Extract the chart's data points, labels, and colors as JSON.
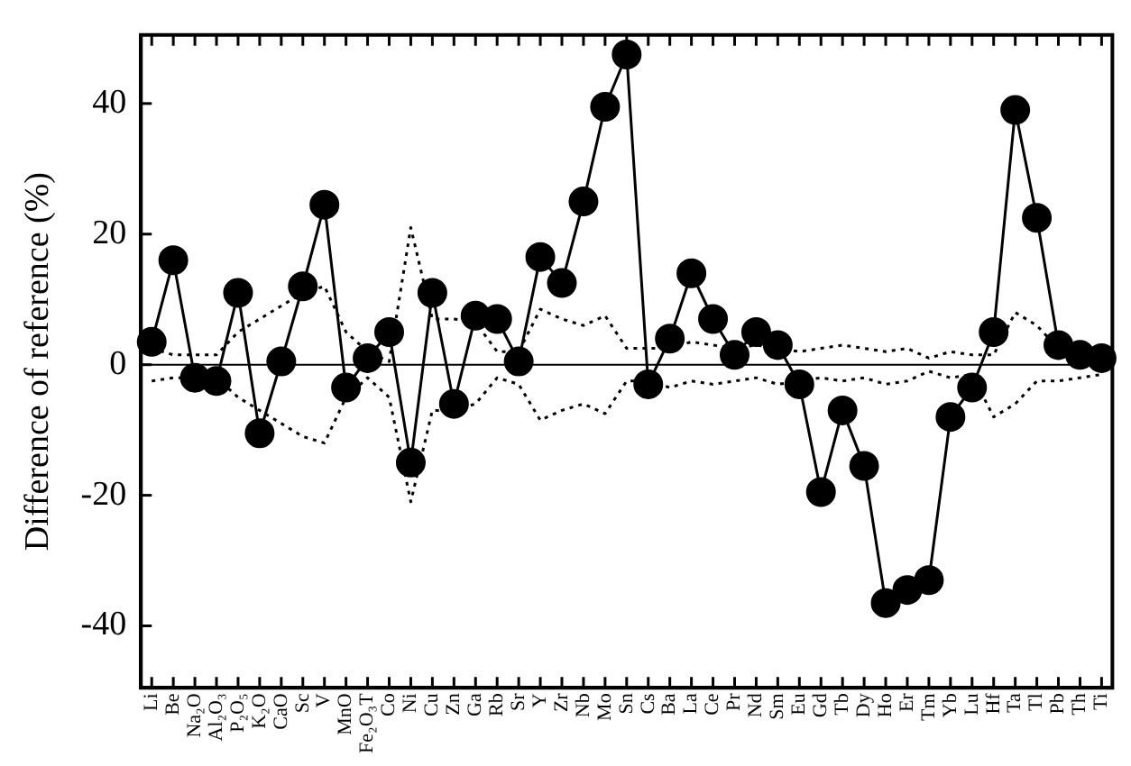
{
  "chart_data": {
    "type": "line",
    "ylabel": "Difference of reference (%)",
    "categories": [
      "Li",
      "Be",
      "Na₂O",
      "Al₂O₃",
      "P₂O₅",
      "K₂O",
      "CaO",
      "Sc",
      "V",
      "MnO",
      "Fe₂O₃T",
      "Co",
      "Ni",
      "Cu",
      "Zn",
      "Ga",
      "Rb",
      "Sr",
      "Y",
      "Zr",
      "Nb",
      "Mo",
      "Sn",
      "Cs",
      "Ba",
      "La",
      "Ce",
      "Pr",
      "Nd",
      "Sm",
      "Eu",
      "Gd",
      "Tb",
      "Dy",
      "Ho",
      "Er",
      "Tm",
      "Yb",
      "Lu",
      "Hf",
      "Ta",
      "Tl",
      "Pb",
      "Th",
      "Ti"
    ],
    "series": [
      {
        "color": "#000000",
        "marker": "circle",
        "line_style": "solid",
        "values": [
          3.5,
          16,
          -2,
          -2.5,
          11,
          -10.5,
          0.5,
          12,
          24.5,
          -3.5,
          1,
          5,
          -15,
          11,
          -6,
          7.5,
          7,
          0.5,
          16.5,
          12.5,
          25,
          39.5,
          47.5,
          -3,
          4,
          14,
          7,
          1.5,
          5,
          3,
          -3,
          -19.5,
          -7,
          -15.5,
          -36.5,
          -34.5,
          -33,
          -8,
          -3.5,
          5,
          39,
          22.5,
          3,
          1.5,
          1
        ]
      },
      {
        "color": "#000000",
        "marker": "none",
        "line_style": "dotted",
        "values": [
          2.5,
          1.5,
          1.5,
          1.5,
          5,
          7,
          9,
          11,
          12,
          5,
          2,
          0.5,
          21,
          7,
          7,
          6.5,
          2,
          2,
          8.5,
          7,
          6,
          7.5,
          2.5,
          2.5,
          2.5,
          3.5,
          3,
          2.5,
          3,
          2.5,
          2,
          2.5,
          3,
          2.5,
          2,
          2.5,
          1,
          2,
          1.5,
          1.5,
          8,
          6,
          2.5,
          1.5,
          1.5
        ]
      },
      {
        "color": "#000000",
        "marker": "none",
        "line_style": "dotted",
        "values": [
          -2.5,
          -2,
          -2,
          -2,
          -5,
          -7,
          -9,
          -11,
          -12,
          -5,
          -2,
          -5,
          -21,
          -7,
          -7,
          -6,
          -2,
          -3,
          -8.5,
          -7,
          -6,
          -7.5,
          -2.5,
          -2.5,
          -3.5,
          -2.5,
          -3,
          -2.5,
          -2,
          -3,
          -2.5,
          -2,
          -2.5,
          -2,
          -3,
          -2.5,
          -1,
          -2,
          -1.5,
          -8,
          -6,
          -2.5,
          -2.5,
          -2,
          -1.5
        ]
      }
    ],
    "ylim": [
      -49.5,
      50.5
    ],
    "yticks": [
      -40,
      -20,
      0,
      20,
      40
    ],
    "ref_lines": [
      {
        "axis": "y",
        "value": 0,
        "color": "#000000",
        "line_style": "solid"
      }
    ],
    "grid": false,
    "legend": false
  }
}
